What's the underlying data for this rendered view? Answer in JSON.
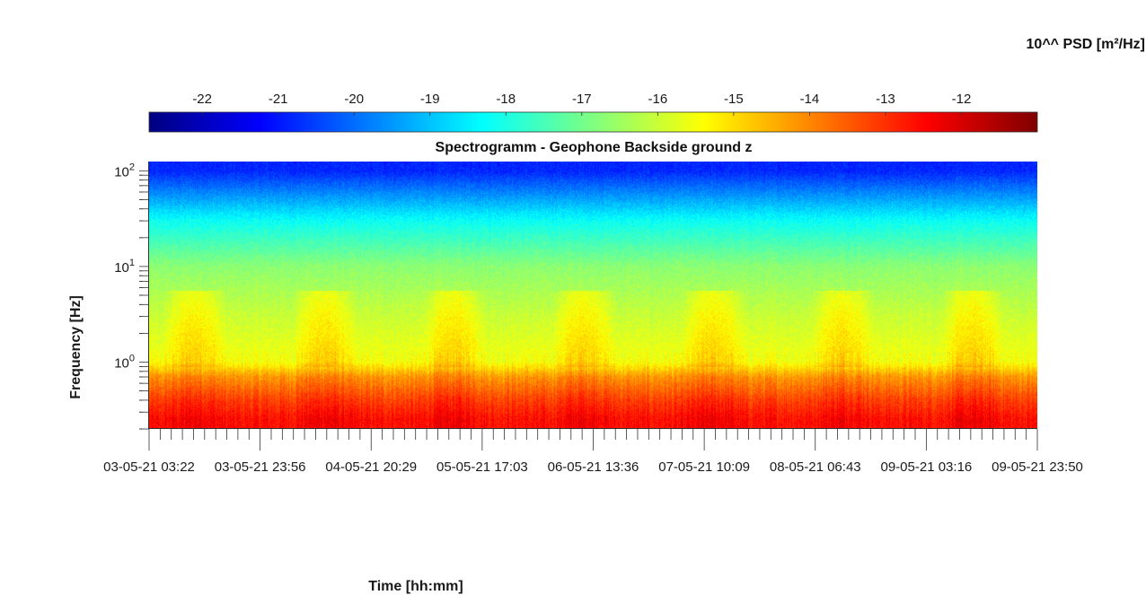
{
  "chart_data": {
    "type": "heatmap",
    "title": "Spectrogramm - Geophone Backside ground z",
    "xlabel": "Time [hh:mm]",
    "ylabel": "Frequency [Hz]",
    "yscale": "log",
    "ylim": [
      0.2,
      125
    ],
    "y_ticks": [
      {
        "value": 1,
        "base": "10",
        "exp": "0"
      },
      {
        "value": 10,
        "base": "10",
        "exp": "1"
      },
      {
        "value": 100,
        "base": "10",
        "exp": "2"
      }
    ],
    "x_tick_labels": [
      "03-05-21 03:22",
      "03-05-21 23:56",
      "04-05-21 20:29",
      "05-05-21 17:03",
      "06-05-21 13:36",
      "07-05-21 10:09",
      "08-05-21 06:43",
      "09-05-21 03:16",
      "09-05-21 23:50"
    ],
    "colorbar": {
      "title": "10^^ PSD [m²/Hz]",
      "colormap": "jet",
      "range": [
        -22.7,
        -11.0
      ],
      "ticks": [
        -22,
        -21,
        -20,
        -19,
        -18,
        -17,
        -16,
        -15,
        -14,
        -13,
        -12
      ]
    },
    "spectral_profile": [
      {
        "freq_hz": 0.25,
        "log10_psd": -12.6
      },
      {
        "freq_hz": 0.4,
        "log10_psd": -13.2
      },
      {
        "freq_hz": 0.7,
        "log10_psd": -14.2
      },
      {
        "freq_hz": 1.0,
        "log10_psd": -15.5
      },
      {
        "freq_hz": 3.0,
        "log10_psd": -16.0
      },
      {
        "freq_hz": 10,
        "log10_psd": -16.7
      },
      {
        "freq_hz": 30,
        "log10_psd": -18.2
      },
      {
        "freq_hz": 100,
        "log10_psd": -20.8
      }
    ],
    "grid": false
  }
}
